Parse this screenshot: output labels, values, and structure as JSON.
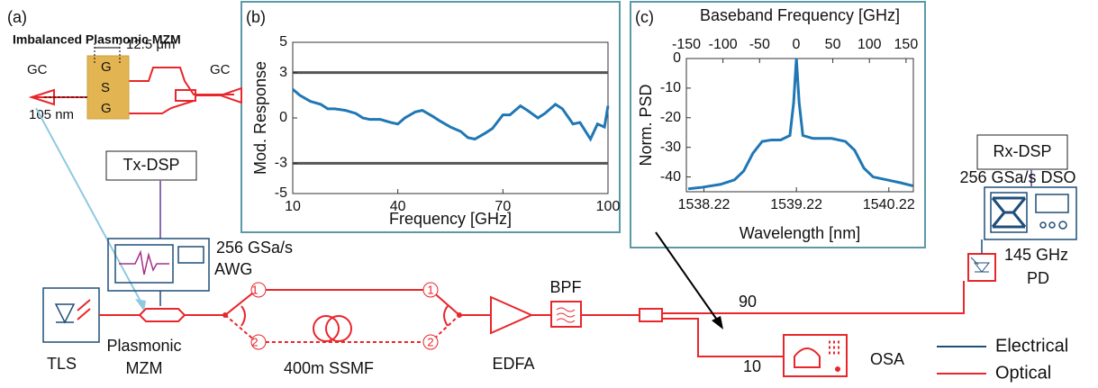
{
  "diagram": {
    "panel_a": "(a)",
    "inset_title": "Imbalanced Plasmonic MZM",
    "gap_width": "12.5 μm",
    "gc_left": "GC",
    "gc_right": "GC",
    "electrode_top": "G",
    "electrode_mid": "S",
    "electrode_bottom": "G",
    "slot_width": "105 nm",
    "tx_dsp": "Tx-DSP",
    "awg_rate": "256 GSa/s",
    "awg": "AWG",
    "tls": "TLS",
    "mzm_line1": "Plasmonic",
    "mzm_line2": "MZM",
    "port_upper_left": "1",
    "port_lower_left": "2",
    "port_upper_right": "1",
    "port_lower_right": "2",
    "fiber": "400m SSMF",
    "edfa": "EDFA",
    "bpf": "BPF",
    "split_90": "90",
    "split_10": "10",
    "osa": "OSA",
    "rx_dsp": "Rx-DSP",
    "dso": "256 GSa/s DSO",
    "pd_bw": "145 GHz",
    "pd": "PD",
    "legend": [
      {
        "label": "Electrical",
        "color": "#1f4e79"
      },
      {
        "label": "Optical",
        "color": "#e8262b"
      }
    ]
  },
  "chart_data": [
    {
      "type": "line",
      "panel": "(b)",
      "xlabel": "Frequency [GHz]",
      "ylabel": "Mod. Response",
      "color": "#1f77b4",
      "x": [
        10,
        12,
        15,
        18,
        20,
        22,
        25,
        28,
        30,
        32,
        35,
        38,
        40,
        42,
        45,
        47,
        50,
        52,
        55,
        58,
        60,
        62,
        65,
        67,
        70,
        72,
        75,
        77,
        80,
        82,
        85,
        87,
        90,
        92,
        95,
        97,
        99,
        100
      ],
      "values": [
        1.9,
        1.5,
        1.1,
        0.9,
        0.6,
        0.6,
        0.5,
        0.3,
        0.0,
        -0.1,
        -0.1,
        -0.3,
        -0.4,
        0.0,
        0.4,
        0.5,
        0.1,
        -0.2,
        -0.6,
        -0.9,
        -1.3,
        -1.4,
        -1.0,
        -0.7,
        0.2,
        0.2,
        0.8,
        0.5,
        0.0,
        0.3,
        0.9,
        0.6,
        -0.4,
        -0.3,
        -1.4,
        -0.4,
        -0.6,
        0.8
      ],
      "xlim": [
        10,
        100
      ],
      "xticks": [
        10,
        40,
        70,
        100
      ],
      "ylim": [
        -5,
        5
      ],
      "yticks": [
        -5,
        -3,
        0,
        3,
        5
      ],
      "hlines": [
        -3,
        3
      ],
      "hline_color": "#555555"
    },
    {
      "type": "line",
      "panel": "(c)",
      "xlabel": "Wavelength [nm]",
      "ylabel": "Norm. PSD",
      "x2label": "Baseband Frequency [GHz]",
      "color": "#1f77b4",
      "x": [
        1538.05,
        1538.2,
        1538.4,
        1538.55,
        1538.65,
        1538.75,
        1538.85,
        1538.95,
        1539.05,
        1539.15,
        1539.19,
        1539.22,
        1539.25,
        1539.29,
        1539.4,
        1539.6,
        1539.75,
        1539.85,
        1539.95,
        1540.05,
        1540.2,
        1540.35,
        1540.48
      ],
      "values": [
        -44,
        -43.5,
        -42.5,
        -41,
        -38,
        -32,
        -28,
        -27.5,
        -27.5,
        -26,
        -15,
        0,
        -15,
        -26,
        -27,
        -27,
        -28,
        -31,
        -37,
        -40,
        -41,
        -42,
        -43
      ],
      "xlim": [
        1538.03,
        1540.485
      ],
      "xticks": [
        1538.22,
        1539.22,
        1540.22
      ],
      "ylim": [
        -45,
        0
      ],
      "yticks": [
        -40,
        -30,
        -20,
        -10,
        0
      ],
      "x2lim": [
        -150,
        160
      ],
      "x2ticks": [
        -150,
        -100,
        -50,
        0,
        50,
        100,
        150
      ]
    }
  ]
}
